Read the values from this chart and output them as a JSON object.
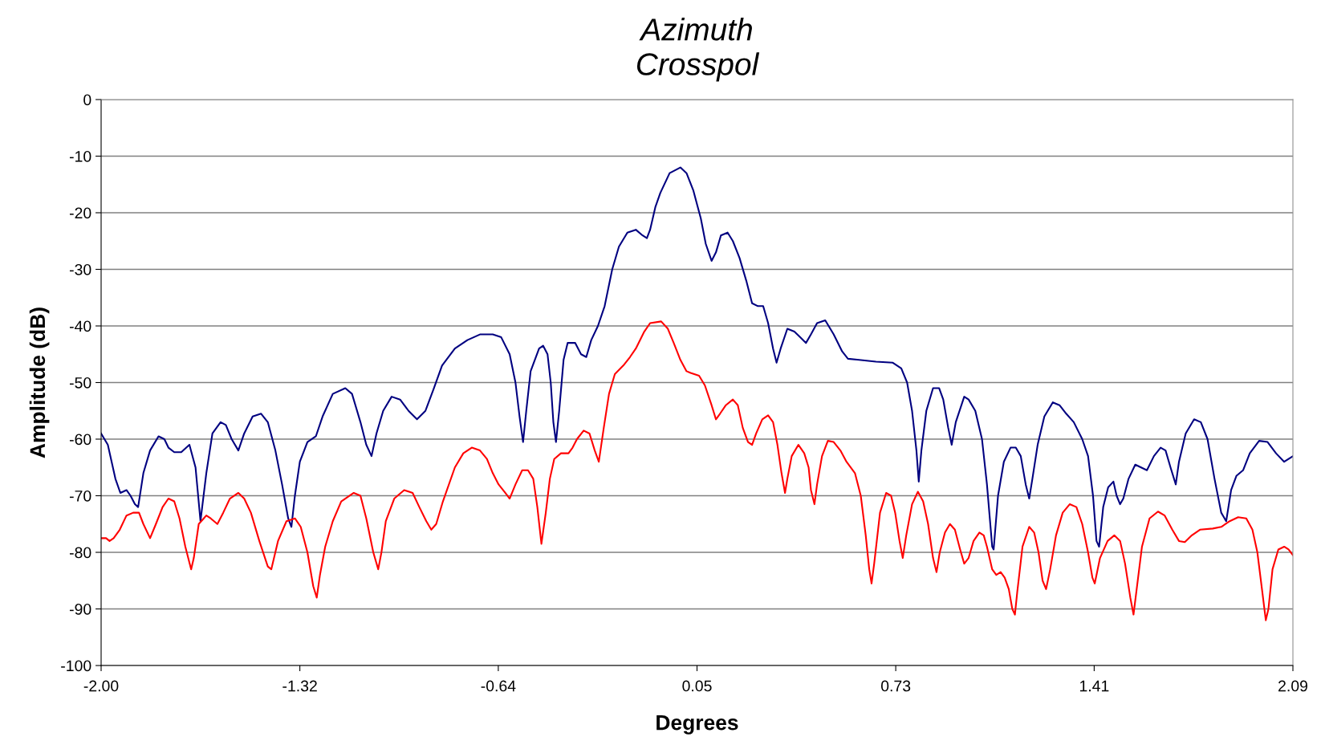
{
  "chart_data": {
    "type": "line",
    "title": "Azimuth\nCrosspol",
    "xlabel": "Degrees",
    "ylabel": "Amplitude (dB)",
    "xlim": [
      -2.0,
      2.09
    ],
    "ylim": [
      -100,
      0
    ],
    "xticks": [
      {
        "value": -2.0,
        "label": "-2.00"
      },
      {
        "value": -1.318,
        "label": "-1.32"
      },
      {
        "value": -0.637,
        "label": "-0.64"
      },
      {
        "value": 0.045,
        "label": "0.05"
      },
      {
        "value": 0.727,
        "label": "0.73"
      },
      {
        "value": 1.408,
        "label": "1.41"
      },
      {
        "value": 2.09,
        "label": "2.09"
      }
    ],
    "yticks": [
      -100,
      -90,
      -80,
      -70,
      -60,
      -50,
      -40,
      -30,
      -20,
      -10,
      0
    ],
    "grid": "y",
    "marker": "none",
    "line_style": "solid",
    "series": [
      {
        "color": "#000080",
        "x": [
          -2.0,
          -1.977,
          -1.951,
          -1.934,
          -1.913,
          -1.899,
          -1.884,
          -1.873,
          -1.855,
          -1.832,
          -1.803,
          -1.783,
          -1.769,
          -1.749,
          -1.725,
          -1.697,
          -1.676,
          -1.659,
          -1.639,
          -1.618,
          -1.59,
          -1.572,
          -1.552,
          -1.529,
          -1.509,
          -1.48,
          -1.451,
          -1.428,
          -1.402,
          -1.379,
          -1.358,
          -1.347,
          -1.335,
          -1.318,
          -1.292,
          -1.263,
          -1.24,
          -1.205,
          -1.162,
          -1.139,
          -1.11,
          -1.09,
          -1.072,
          -1.055,
          -1.032,
          -1.003,
          -0.974,
          -0.945,
          -0.916,
          -0.887,
          -0.858,
          -0.83,
          -0.786,
          -0.743,
          -0.7,
          -0.656,
          -0.627,
          -0.598,
          -0.578,
          -0.564,
          -0.552,
          -0.541,
          -0.526,
          -0.497,
          -0.483,
          -0.468,
          -0.457,
          -0.448,
          -0.439,
          -0.428,
          -0.413,
          -0.399,
          -0.373,
          -0.353,
          -0.335,
          -0.318,
          -0.295,
          -0.272,
          -0.246,
          -0.223,
          -0.194,
          -0.165,
          -0.142,
          -0.127,
          -0.116,
          -0.098,
          -0.081,
          -0.049,
          -0.012,
          0.009,
          0.032,
          0.058,
          0.075,
          0.095,
          0.11,
          0.127,
          0.15,
          0.168,
          0.191,
          0.214,
          0.234,
          0.254,
          0.272,
          0.289,
          0.306,
          0.318,
          0.332,
          0.355,
          0.379,
          0.399,
          0.419,
          0.436,
          0.457,
          0.485,
          0.514,
          0.543,
          0.563,
          0.601,
          0.659,
          0.717,
          0.746,
          0.766,
          0.783,
          0.798,
          0.806,
          0.815,
          0.832,
          0.855,
          0.876,
          0.89,
          0.907,
          0.919,
          0.933,
          0.962,
          0.977,
          1.0,
          1.023,
          1.04,
          1.058,
          1.063,
          1.078,
          1.098,
          1.121,
          1.139,
          1.156,
          1.173,
          1.185,
          1.196,
          1.214,
          1.237,
          1.266,
          1.289,
          1.312,
          1.338,
          1.367,
          1.387,
          1.404,
          1.416,
          1.425,
          1.439,
          1.456,
          1.474,
          1.485,
          1.497,
          1.508,
          1.526,
          1.549,
          1.569,
          1.589,
          1.613,
          1.636,
          1.653,
          1.67,
          1.688,
          1.699,
          1.722,
          1.751,
          1.774,
          1.797,
          1.821,
          1.844,
          1.861,
          1.878,
          1.896,
          1.919,
          1.942,
          1.974,
          2.003,
          2.032,
          2.06,
          2.09
        ],
        "values": [
          -59,
          -61,
          -67,
          -69.5,
          -69,
          -70,
          -71.5,
          -72,
          -66,
          -62,
          -59.5,
          -60,
          -61.5,
          -62.3,
          -62.3,
          -61,
          -65,
          -74.5,
          -66,
          -59,
          -57,
          -57.5,
          -60,
          -62,
          -59,
          -56,
          -55.5,
          -57,
          -62,
          -68,
          -74,
          -75.5,
          -70,
          -64,
          -60.5,
          -59.5,
          -56,
          -52,
          -51,
          -52,
          -57,
          -61,
          -63,
          -59,
          -55,
          -52.5,
          -53,
          -55,
          -56.5,
          -55,
          -51,
          -47,
          -44,
          -42.5,
          -41.5,
          -41.5,
          -42,
          -45,
          -50,
          -56,
          -60.5,
          -55,
          -48,
          -44,
          -43.5,
          -45,
          -50,
          -57,
          -60.5,
          -55,
          -46,
          -43,
          -43,
          -45,
          -45.5,
          -42.5,
          -40,
          -36.5,
          -30,
          -26,
          -23.5,
          -23,
          -24,
          -24.5,
          -23,
          -19,
          -16.5,
          -13,
          -12,
          -13,
          -16,
          -21,
          -25.5,
          -28.5,
          -27,
          -24,
          -23.5,
          -25,
          -28,
          -32,
          -36,
          -36.5,
          -36.5,
          -39.5,
          -44,
          -46.5,
          -44,
          -40.5,
          -41,
          -42,
          -43,
          -41.5,
          -39.5,
          -39,
          -41.5,
          -44.5,
          -45.8,
          -46,
          -46.3,
          -46.5,
          -47.5,
          -50,
          -55,
          -62,
          -67.5,
          -62,
          -55,
          -51,
          -51,
          -53,
          -58,
          -61,
          -57,
          -52.5,
          -53,
          -55,
          -60,
          -68,
          -79,
          -79.5,
          -70,
          -64,
          -61.5,
          -61.5,
          -63,
          -68,
          -70.5,
          -67,
          -61,
          -56,
          -53.5,
          -54,
          -55.5,
          -57,
          -60,
          -63,
          -70,
          -78,
          -79,
          -72,
          -68.5,
          -67.5,
          -70,
          -71.5,
          -70.5,
          -67,
          -64.5,
          -65,
          -65.5,
          -63,
          -61.5,
          -62,
          -65,
          -68,
          -64,
          -59,
          -56.5,
          -57,
          -60,
          -67,
          -73,
          -74.5,
          -69,
          -66.5,
          -65.5,
          -62.5,
          -60.3,
          -60.5,
          -62.5,
          -64,
          -63
        ]
      },
      {
        "color": "#ff0000",
        "x": [
          -2.0,
          -1.983,
          -1.971,
          -1.957,
          -1.936,
          -1.913,
          -1.89,
          -1.87,
          -1.855,
          -1.832,
          -1.812,
          -1.789,
          -1.769,
          -1.749,
          -1.731,
          -1.711,
          -1.691,
          -1.682,
          -1.665,
          -1.639,
          -1.624,
          -1.601,
          -1.581,
          -1.558,
          -1.529,
          -1.509,
          -1.486,
          -1.457,
          -1.428,
          -1.416,
          -1.393,
          -1.364,
          -1.335,
          -1.315,
          -1.292,
          -1.272,
          -1.26,
          -1.249,
          -1.231,
          -1.205,
          -1.176,
          -1.133,
          -1.11,
          -1.09,
          -1.066,
          -1.049,
          -1.038,
          -1.023,
          -0.994,
          -0.96,
          -0.931,
          -0.908,
          -0.884,
          -0.867,
          -0.85,
          -0.827,
          -0.786,
          -0.757,
          -0.728,
          -0.7,
          -0.676,
          -0.656,
          -0.636,
          -0.613,
          -0.598,
          -0.578,
          -0.555,
          -0.535,
          -0.517,
          -0.503,
          -0.489,
          -0.474,
          -0.46,
          -0.445,
          -0.422,
          -0.396,
          -0.382,
          -0.367,
          -0.344,
          -0.324,
          -0.306,
          -0.292,
          -0.275,
          -0.257,
          -0.237,
          -0.208,
          -0.185,
          -0.165,
          -0.136,
          -0.116,
          -0.078,
          -0.055,
          -0.035,
          -0.012,
          0.009,
          0.023,
          0.052,
          0.072,
          0.095,
          0.11,
          0.124,
          0.144,
          0.168,
          0.185,
          0.202,
          0.22,
          0.234,
          0.248,
          0.269,
          0.289,
          0.306,
          0.321,
          0.335,
          0.347,
          0.355,
          0.37,
          0.393,
          0.413,
          0.428,
          0.436,
          0.448,
          0.457,
          0.474,
          0.494,
          0.514,
          0.537,
          0.558,
          0.587,
          0.607,
          0.624,
          0.636,
          0.644,
          0.653,
          0.673,
          0.694,
          0.711,
          0.725,
          0.74,
          0.751,
          0.763,
          0.783,
          0.803,
          0.821,
          0.838,
          0.855,
          0.867,
          0.878,
          0.896,
          0.913,
          0.93,
          0.948,
          0.962,
          0.977,
          0.994,
          1.014,
          1.029,
          1.04,
          1.058,
          1.072,
          1.087,
          1.101,
          1.115,
          1.127,
          1.136,
          1.144,
          1.162,
          1.185,
          1.202,
          1.217,
          1.231,
          1.243,
          1.257,
          1.277,
          1.3,
          1.324,
          1.347,
          1.367,
          1.387,
          1.402,
          1.41,
          1.428,
          1.454,
          1.477,
          1.497,
          1.514,
          1.532,
          1.543,
          1.555,
          1.572,
          1.598,
          1.627,
          1.65,
          1.676,
          1.699,
          1.719,
          1.743,
          1.771,
          1.815,
          1.844,
          1.873,
          1.902,
          1.93,
          1.951,
          1.968,
          1.985,
          1.997,
          2.006,
          2.02,
          2.04,
          2.06,
          2.075,
          2.09
        ],
        "values": [
          -77.5,
          -77.5,
          -78,
          -77.5,
          -76,
          -73.5,
          -73,
          -73,
          -75,
          -77.5,
          -75,
          -72,
          -70.5,
          -71,
          -74,
          -79,
          -83,
          -81,
          -75,
          -73.5,
          -74,
          -75,
          -73,
          -70.5,
          -69.5,
          -70.5,
          -73,
          -78,
          -82.5,
          -83,
          -78,
          -74.5,
          -74,
          -75.5,
          -80,
          -86,
          -88,
          -84,
          -79,
          -74.5,
          -71,
          -69.5,
          -70,
          -74,
          -80,
          -83,
          -80,
          -74.5,
          -70.5,
          -69,
          -69.5,
          -72,
          -74.5,
          -76,
          -75,
          -71,
          -65,
          -62.5,
          -61.5,
          -62,
          -63.5,
          -66,
          -68,
          -69.5,
          -70.5,
          -68,
          -65.5,
          -65.5,
          -67,
          -72,
          -78.5,
          -73,
          -67,
          -63.5,
          -62.5,
          -62.5,
          -61.5,
          -60,
          -58.5,
          -59,
          -62,
          -64,
          -58,
          -52,
          -48.5,
          -47,
          -45.5,
          -44,
          -41,
          -39.5,
          -39.2,
          -40.5,
          -43,
          -46,
          -48,
          -48.3,
          -48.8,
          -50.5,
          -54,
          -56.5,
          -55.5,
          -54,
          -53,
          -54,
          -58,
          -60.5,
          -61,
          -59,
          -56.5,
          -55.8,
          -57,
          -61,
          -66,
          -69.5,
          -67,
          -63,
          -61,
          -62.5,
          -65,
          -69,
          -71.5,
          -68,
          -63,
          -60.3,
          -60.5,
          -62,
          -64,
          -66,
          -70,
          -77,
          -83,
          -85.5,
          -82,
          -73,
          -69.5,
          -70,
          -73,
          -78,
          -81,
          -77,
          -71.5,
          -69.3,
          -71,
          -75,
          -81,
          -83.5,
          -80,
          -76.5,
          -75,
          -76,
          -79.5,
          -82,
          -81,
          -78,
          -76.5,
          -77,
          -79,
          -83,
          -84,
          -83.5,
          -84.5,
          -86.5,
          -90,
          -91,
          -87,
          -79,
          -75.5,
          -76.5,
          -80,
          -85,
          -86.5,
          -83,
          -77,
          -73,
          -71.5,
          -72,
          -75,
          -80,
          -84.5,
          -85.5,
          -81,
          -78,
          -77,
          -78,
          -82,
          -88,
          -91,
          -86,
          -79,
          -74,
          -72.8,
          -73.5,
          -76,
          -78,
          -78.2,
          -77,
          -76,
          -75.8,
          -75.5,
          -74.5,
          -73.8,
          -74,
          -76,
          -80,
          -87,
          -92,
          -90,
          -83,
          -79.5,
          -79,
          -79.5,
          -80.5
        ]
      }
    ]
  }
}
